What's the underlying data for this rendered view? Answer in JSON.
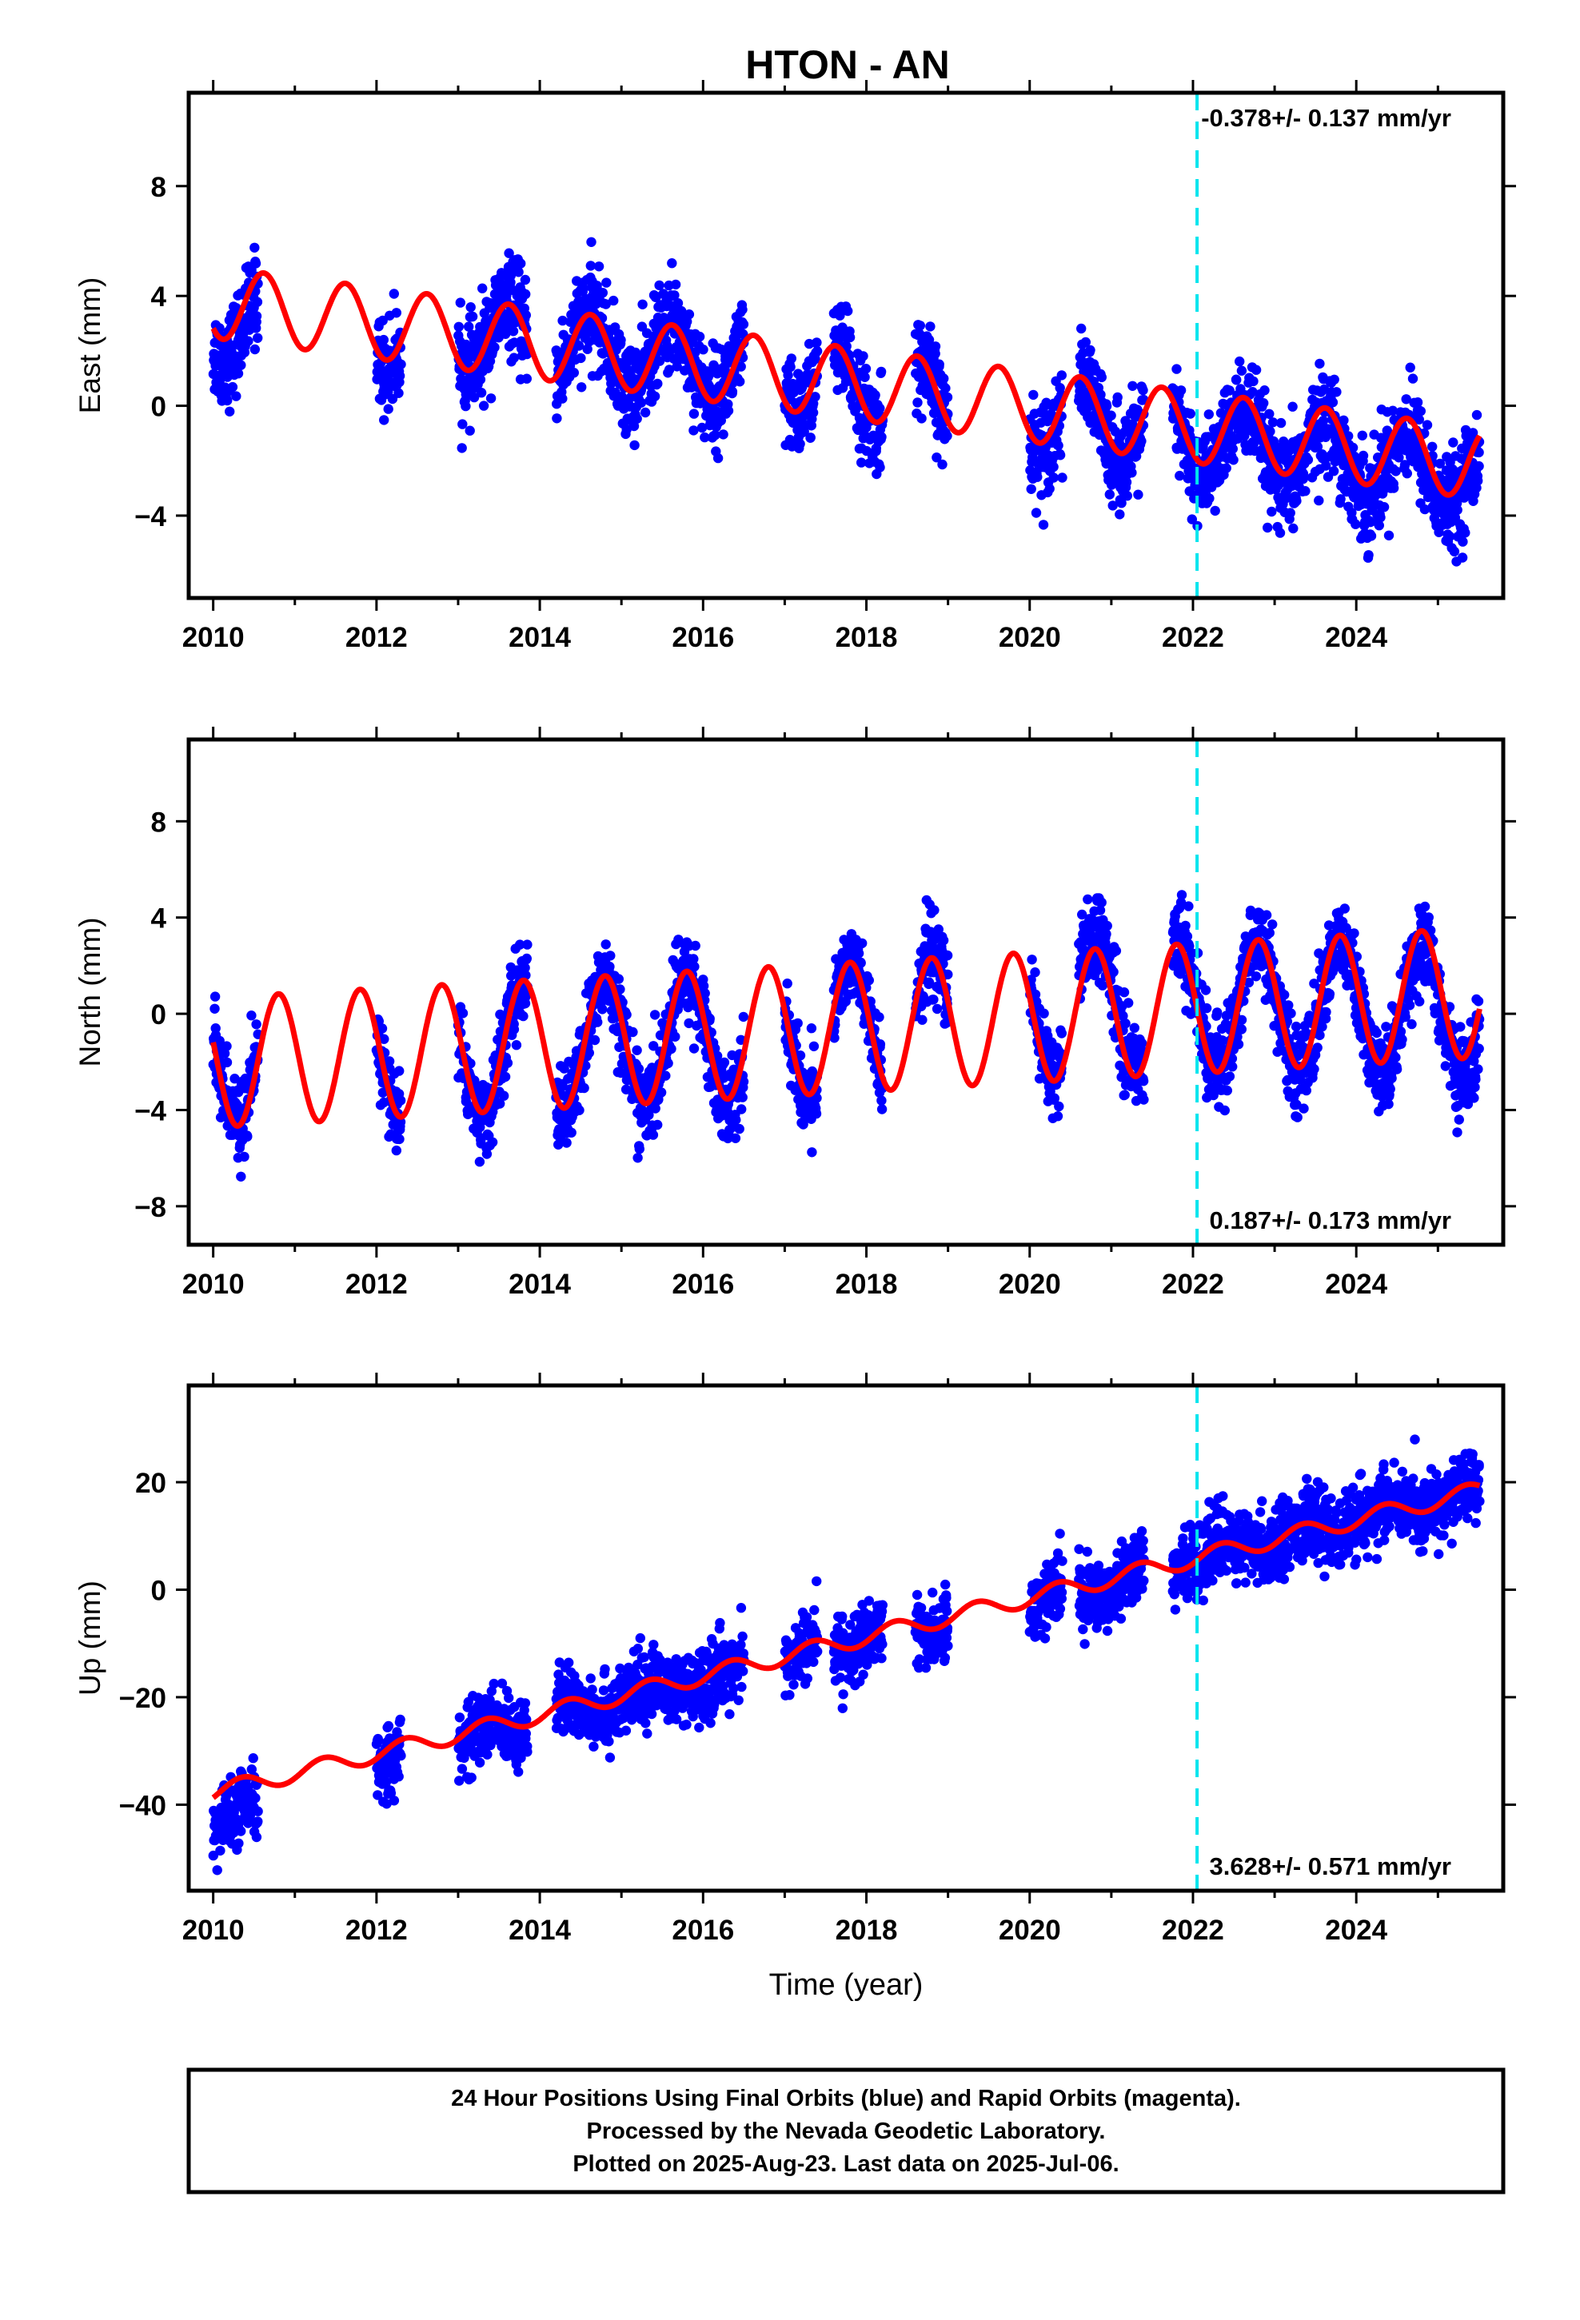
{
  "title": "HTON - AN",
  "colors": {
    "points": "#0000ff",
    "fit": "#ff0000",
    "marker": "#00e5ee",
    "frame": "#000000"
  },
  "chart_data": [
    {
      "type": "scatter",
      "component": "east",
      "ylabel": "East (mm)",
      "xlabel": "",
      "xlim": [
        2009.7,
        2025.8
      ],
      "ylim": [
        -7,
        11.4
      ],
      "xticks": [
        2010,
        2012,
        2014,
        2016,
        2018,
        2020,
        2022,
        2024
      ],
      "yticks": [
        -4,
        0,
        4,
        8
      ],
      "rate_label": "-0.378+/- 0.137 mm/yr",
      "rate_position": "top-right",
      "rate_mm_per_yr": -0.378,
      "marker_year": 2022.05,
      "fit": {
        "slope": -0.378,
        "anchor_year": 2016,
        "anchor_value": 1.5,
        "annual_amp": 1.3,
        "annual_peak": 0.62
      },
      "points": {
        "noise": 0.85,
        "trend": [
          [
            2010,
            3.0
          ],
          [
            2013,
            2.6
          ],
          [
            2016,
            1.6
          ],
          [
            2019,
            0.2
          ],
          [
            2021,
            -0.6
          ],
          [
            2022,
            -1.2
          ],
          [
            2025.5,
            -2.5
          ]
        ]
      },
      "series": [
        {
          "name": "24 Hour Positions (Final Orbits)"
        }
      ]
    },
    {
      "type": "scatter",
      "component": "north",
      "ylabel": "North (mm)",
      "xlabel": "",
      "xlim": [
        2009.7,
        2025.8
      ],
      "ylim": [
        -9.6,
        11.4
      ],
      "xticks": [
        2010,
        2012,
        2014,
        2016,
        2018,
        2020,
        2022,
        2024
      ],
      "yticks": [
        -8,
        -4,
        0,
        4,
        8
      ],
      "rate_label": "0.187+/- 0.173 mm/yr",
      "rate_position": "bottom-right",
      "rate_mm_per_yr": 0.187,
      "marker_year": 2022.05,
      "fit": {
        "slope": 0.187,
        "anchor_year": 2016,
        "anchor_value": -0.9,
        "annual_amp": 2.7,
        "annual_peak": 0.8
      },
      "points": {
        "noise": 0.85,
        "trend": [
          [
            2010,
            -1.8
          ],
          [
            2014,
            -1.5
          ],
          [
            2018,
            -0.6
          ],
          [
            2021,
            0.6
          ],
          [
            2025.5,
            0.0
          ]
        ]
      },
      "series": [
        {
          "name": "24 Hour Positions (Final Orbits)"
        }
      ]
    },
    {
      "type": "scatter",
      "component": "up",
      "ylabel": "Up (mm)",
      "xlabel": "Time (year)",
      "xlim": [
        2009.7,
        2025.8
      ],
      "ylim": [
        -56,
        38
      ],
      "xticks": [
        2010,
        2012,
        2014,
        2016,
        2018,
        2020,
        2022,
        2024
      ],
      "yticks": [
        -40,
        -20,
        0,
        20
      ],
      "rate_label": "3.628+/- 0.571 mm/yr",
      "rate_position": "bottom-right",
      "rate_mm_per_yr": 3.628,
      "marker_year": 2022.05,
      "fit": {
        "slope": 3.628,
        "anchor_year": 2016,
        "anchor_value": -16,
        "annual_amp": 1.6,
        "annual_peak": 0.35
      },
      "points": {
        "noise": 3.2,
        "trend": [
          [
            2010,
            -44
          ],
          [
            2012,
            -33
          ],
          [
            2014,
            -24
          ],
          [
            2016,
            -17
          ],
          [
            2018,
            -9
          ],
          [
            2020,
            -3
          ],
          [
            2022,
            6
          ],
          [
            2025.5,
            18
          ]
        ]
      },
      "series": [
        {
          "name": "24 Hour Positions (Final Orbits)"
        }
      ]
    }
  ],
  "data_segments": [
    [
      2010.0,
      2010.55
    ],
    [
      2012.0,
      2012.3
    ],
    [
      2013.0,
      2013.85
    ],
    [
      2014.2,
      2015.6
    ],
    [
      2015.6,
      2016.5
    ],
    [
      2017.0,
      2017.4
    ],
    [
      2017.6,
      2018.2
    ],
    [
      2018.6,
      2019.0
    ],
    [
      2020.0,
      2020.4
    ],
    [
      2020.6,
      2021.4
    ],
    [
      2021.75,
      2025.51
    ]
  ],
  "caption": {
    "line1": "24 Hour Positions Using Final Orbits (blue) and Rapid Orbits (magenta).",
    "line2": "Processed by the Nevada Geodetic Laboratory.",
    "line3": "Plotted on 2025-Aug-23. Last data on 2025-Jul-06."
  }
}
